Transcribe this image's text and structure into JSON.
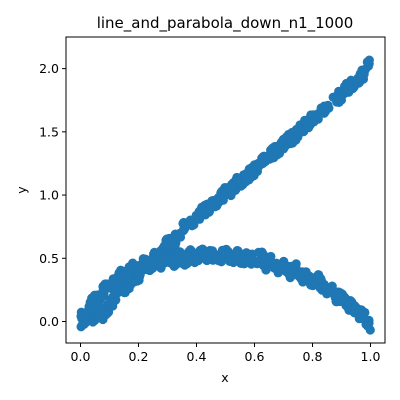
{
  "chart_data": {
    "type": "scatter",
    "title": "line_and_parabola_down_n1_1000",
    "xlabel": "x",
    "ylabel": "y",
    "xlim": [
      -0.05,
      1.05
    ],
    "ylim": [
      -0.17,
      2.25
    ],
    "x_ticks": [
      "0.0",
      "0.2",
      "0.4",
      "0.6",
      "0.8",
      "1.0"
    ],
    "y_ticks": [
      "0.0",
      "0.5",
      "1.0",
      "1.5",
      "2.0"
    ],
    "grid": false,
    "legend": "none",
    "marker_color": "#1f77b4",
    "n_points": 1000,
    "series": [
      {
        "shape": "line",
        "points": [
          [
            0.0,
            -0.05
          ],
          [
            0.02,
            0.06
          ],
          [
            0.04,
            -0.01
          ],
          [
            0.06,
            0.1
          ],
          [
            0.08,
            0.05
          ],
          [
            0.1,
            0.12
          ],
          [
            0.12,
            0.2
          ],
          [
            0.14,
            0.26
          ],
          [
            0.16,
            0.27
          ],
          [
            0.18,
            0.36
          ],
          [
            0.2,
            0.35
          ],
          [
            0.22,
            0.46
          ],
          [
            0.24,
            0.44
          ],
          [
            0.26,
            0.55
          ],
          [
            0.28,
            0.52
          ],
          [
            0.3,
            0.63
          ],
          [
            0.32,
            0.62
          ],
          [
            0.34,
            0.7
          ],
          [
            0.36,
            0.75
          ],
          [
            0.38,
            0.79
          ],
          [
            0.4,
            0.8
          ],
          [
            0.42,
            0.87
          ],
          [
            0.44,
            0.9
          ],
          [
            0.46,
            0.94
          ],
          [
            0.48,
            0.97
          ],
          [
            0.5,
            1.02
          ],
          [
            0.52,
            1.04
          ],
          [
            0.54,
            1.1
          ],
          [
            0.56,
            1.12
          ],
          [
            0.58,
            1.16
          ],
          [
            0.6,
            1.2
          ],
          [
            0.62,
            1.25
          ],
          [
            0.64,
            1.27
          ],
          [
            0.66,
            1.33
          ],
          [
            0.68,
            1.36
          ],
          [
            0.7,
            1.4
          ],
          [
            0.72,
            1.44
          ],
          [
            0.74,
            1.47
          ],
          [
            0.76,
            1.53
          ],
          [
            0.78,
            1.56
          ],
          [
            0.8,
            1.6
          ],
          [
            0.82,
            1.63
          ],
          [
            0.84,
            1.69
          ],
          [
            0.86,
            1.72
          ],
          [
            0.88,
            1.76
          ],
          [
            0.9,
            1.79
          ],
          [
            0.92,
            1.85
          ],
          [
            0.94,
            1.88
          ],
          [
            0.96,
            1.92
          ],
          [
            0.98,
            1.97
          ],
          [
            1.0,
            2.06
          ]
        ]
      },
      {
        "shape": "parabola",
        "points": [
          [
            0.0,
            0.08
          ],
          [
            0.02,
            0.02
          ],
          [
            0.04,
            0.16
          ],
          [
            0.06,
            0.17
          ],
          [
            0.08,
            0.25
          ],
          [
            0.1,
            0.31
          ],
          [
            0.12,
            0.3
          ],
          [
            0.14,
            0.38
          ],
          [
            0.16,
            0.36
          ],
          [
            0.18,
            0.43
          ],
          [
            0.2,
            0.42
          ],
          [
            0.22,
            0.47
          ],
          [
            0.24,
            0.43
          ],
          [
            0.26,
            0.5
          ],
          [
            0.28,
            0.45
          ],
          [
            0.3,
            0.51
          ],
          [
            0.32,
            0.47
          ],
          [
            0.34,
            0.52
          ],
          [
            0.36,
            0.48
          ],
          [
            0.38,
            0.53
          ],
          [
            0.4,
            0.49
          ],
          [
            0.42,
            0.55
          ],
          [
            0.44,
            0.51
          ],
          [
            0.46,
            0.53
          ],
          [
            0.48,
            0.5
          ],
          [
            0.5,
            0.56
          ],
          [
            0.52,
            0.5
          ],
          [
            0.54,
            0.53
          ],
          [
            0.56,
            0.48
          ],
          [
            0.58,
            0.52
          ],
          [
            0.6,
            0.47
          ],
          [
            0.62,
            0.53
          ],
          [
            0.64,
            0.45
          ],
          [
            0.66,
            0.49
          ],
          [
            0.68,
            0.42
          ],
          [
            0.7,
            0.46
          ],
          [
            0.72,
            0.38
          ],
          [
            0.74,
            0.43
          ],
          [
            0.76,
            0.35
          ],
          [
            0.78,
            0.37
          ],
          [
            0.8,
            0.3
          ],
          [
            0.82,
            0.33
          ],
          [
            0.84,
            0.25
          ],
          [
            0.86,
            0.27
          ],
          [
            0.88,
            0.2
          ],
          [
            0.9,
            0.2
          ],
          [
            0.92,
            0.13
          ],
          [
            0.94,
            0.12
          ],
          [
            0.96,
            0.06
          ],
          [
            0.98,
            0.04
          ],
          [
            1.0,
            -0.04
          ]
        ]
      }
    ]
  }
}
